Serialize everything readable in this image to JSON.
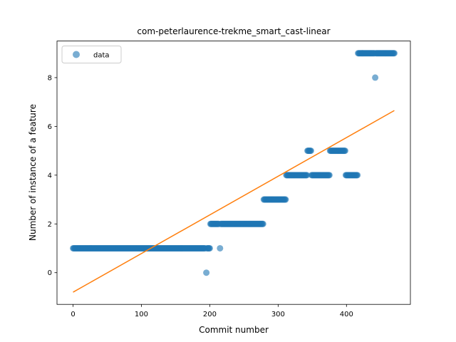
{
  "chart_data": {
    "type": "scatter",
    "title": "com-peterlaurence-trekme_smart_cast-linear",
    "xlabel": "Commit number",
    "ylabel": "Number of instance of a feature",
    "xlim": [
      -23.5,
      493.5
    ],
    "ylim": [
      -1.3,
      9.5
    ],
    "xticks": [
      0,
      100,
      200,
      300,
      400
    ],
    "yticks": [
      0,
      2,
      4,
      6,
      8
    ],
    "legend": {
      "position": "top-left",
      "entries": [
        "data"
      ]
    },
    "grid": false,
    "colors": {
      "points": "#1f77b4",
      "fit": "#ff7f0e"
    },
    "segments": [
      {
        "x_start": 0,
        "x_end": 193,
        "y": 1
      },
      {
        "x_start": 195,
        "x_end": 195,
        "y": 0
      },
      {
        "x_start": 196,
        "x_end": 200,
        "y": 1
      },
      {
        "x_start": 201,
        "x_end": 213,
        "y": 2
      },
      {
        "x_start": 215,
        "x_end": 215,
        "y": 1
      },
      {
        "x_start": 216,
        "x_end": 278,
        "y": 2
      },
      {
        "x_start": 279,
        "x_end": 311,
        "y": 3
      },
      {
        "x_start": 312,
        "x_end": 342,
        "y": 4
      },
      {
        "x_start": 343,
        "x_end": 348,
        "y": 5
      },
      {
        "x_start": 349,
        "x_end": 375,
        "y": 4
      },
      {
        "x_start": 376,
        "x_end": 398,
        "y": 5
      },
      {
        "x_start": 399,
        "x_end": 416,
        "y": 4
      },
      {
        "x_start": 417,
        "x_end": 441,
        "y": 9
      },
      {
        "x_start": 442,
        "x_end": 442,
        "y": 8
      },
      {
        "x_start": 443,
        "x_end": 470,
        "y": 9
      }
    ],
    "fit_line": {
      "x": [
        0,
        470
      ],
      "y": [
        -0.8,
        6.65
      ]
    }
  }
}
